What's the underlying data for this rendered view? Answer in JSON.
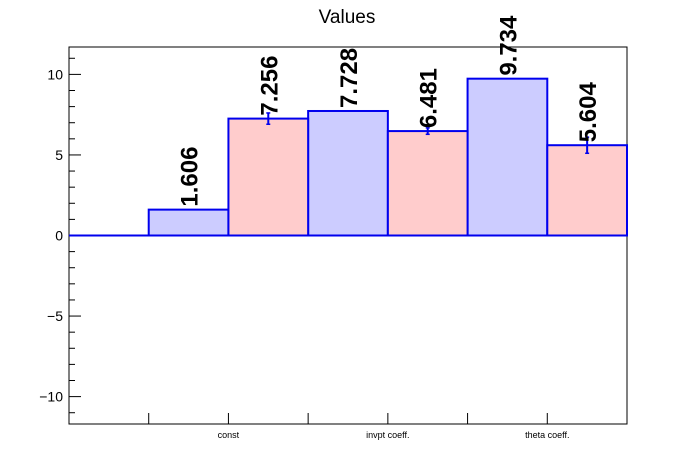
{
  "chart_data": {
    "type": "bar",
    "title": "Values",
    "xlabel": "",
    "ylabel": "",
    "categories": [
      "const",
      "invpt coeff.",
      "theta coeff."
    ],
    "series": [
      {
        "values": [
          1.606,
          7.728,
          9.734
        ],
        "errors": [
          0,
          0,
          0
        ],
        "color": "#ccccff"
      },
      {
        "values": [
          7.256,
          6.481,
          5.604
        ],
        "errors": [
          0.35,
          0.2,
          0.5
        ],
        "color": "#ffcccc"
      }
    ],
    "data_labels": [
      [
        "1.606",
        "7.728",
        "9.734"
      ],
      [
        "7.256",
        "6.481",
        "5.604"
      ]
    ],
    "ylim": [
      -11.7,
      11.7
    ],
    "yticks": [
      -10,
      -5,
      0,
      5,
      10
    ],
    "ytick_labels": [
      "−10",
      "−5",
      "0",
      "5",
      "10"
    ],
    "outline_color": "#0000ee",
    "grid": false,
    "legend": "none"
  }
}
